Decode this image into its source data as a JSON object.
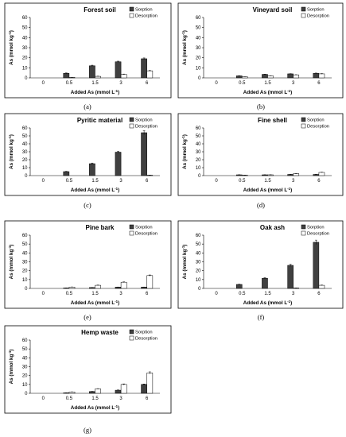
{
  "colors": {
    "sorption": "#404040",
    "desorption": "#ffffff",
    "axis": "#000000"
  },
  "chart_data": [
    {
      "type": "bar",
      "caption": "(a)",
      "title": "Forest soil",
      "xlabel": "Added As (mmol L",
      "xlabel_sup": "-1",
      "xlabel_end": ")",
      "ylabel": "As (mmol kg",
      "ylabel_sup": "-1",
      "ylabel_end": ")",
      "categories": [
        "0",
        "0.5",
        "1.5",
        "3",
        "6"
      ],
      "yticks": [
        "0",
        "10",
        "20",
        "30",
        "40",
        "50",
        "60"
      ],
      "ylim": [
        0,
        60
      ],
      "legend": "top-right",
      "series": [
        {
          "name": "Sorption",
          "values": [
            0,
            4.5,
            12,
            16,
            19
          ],
          "errors": [
            0,
            0.4,
            0.6,
            0.6,
            0.8
          ]
        },
        {
          "name": "Desorption",
          "values": [
            0,
            0.5,
            1.5,
            3.5,
            7
          ],
          "errors": [
            0,
            0.1,
            0.2,
            0.3,
            0.4
          ]
        }
      ]
    },
    {
      "type": "bar",
      "caption": "(b)",
      "title": "Vineyard soil",
      "xlabel": "Added As (mmol L",
      "xlabel_sup": "-1",
      "xlabel_end": ")",
      "ylabel": "As (mmol kg",
      "ylabel_sup": "-1",
      "ylabel_end": ")",
      "categories": [
        "0",
        "0.5",
        "1.5",
        "3",
        "6"
      ],
      "yticks": [
        "0",
        "10",
        "20",
        "30",
        "40",
        "50",
        "60"
      ],
      "ylim": [
        0,
        60
      ],
      "legend": "top-right",
      "series": [
        {
          "name": "Sorption",
          "values": [
            0,
            2,
            3.5,
            4,
            4.5
          ],
          "errors": [
            0,
            0.2,
            0.2,
            0.2,
            0.3
          ]
        },
        {
          "name": "Desorption",
          "values": [
            0,
            1,
            2,
            3,
            4
          ],
          "errors": [
            0,
            0.1,
            0.2,
            0.2,
            0.3
          ]
        }
      ]
    },
    {
      "type": "bar",
      "caption": "(c)",
      "title": "Pyritic material",
      "xlabel": "Added As (mmol L",
      "xlabel_sup": "-1",
      "xlabel_end": ")",
      "ylabel": "As (mmol kg",
      "ylabel_sup": "-1",
      "ylabel_end": ")",
      "categories": [
        "0",
        "0.5",
        "1.5",
        "3",
        "6"
      ],
      "yticks": [
        "0",
        "10",
        "20",
        "30",
        "40",
        "50",
        "60"
      ],
      "ylim": [
        0,
        60
      ],
      "legend": "top-right",
      "series": [
        {
          "name": "Sorption",
          "values": [
            0,
            5,
            15,
            29.5,
            54
          ],
          "errors": [
            0,
            0.4,
            0.8,
            1.2,
            2.5
          ]
        },
        {
          "name": "Desorption",
          "values": [
            0,
            0,
            0,
            0,
            0.5
          ],
          "errors": [
            0,
            0,
            0,
            0,
            0.1
          ]
        }
      ]
    },
    {
      "type": "bar",
      "caption": "(d)",
      "title": "Fine shell",
      "xlabel": "Added As (mmol L",
      "xlabel_sup": "-1",
      "xlabel_end": ")",
      "ylabel": "As (mmol kg",
      "ylabel_sup": "-1",
      "ylabel_end": ")",
      "categories": [
        "0",
        "0.5",
        "1.5",
        "3",
        "6"
      ],
      "yticks": [
        "0",
        "10",
        "20",
        "30",
        "40",
        "50",
        "60"
      ],
      "ylim": [
        0,
        60
      ],
      "legend": "top-right",
      "series": [
        {
          "name": "Sorption",
          "values": [
            0,
            1,
            1,
            1.5,
            1.5
          ],
          "errors": [
            0,
            0.1,
            0.1,
            0.1,
            0.1
          ]
        },
        {
          "name": "Desorption",
          "values": [
            0,
            0.5,
            1,
            2.5,
            4
          ],
          "errors": [
            0,
            0.1,
            0.1,
            0.2,
            0.3
          ]
        }
      ]
    },
    {
      "type": "bar",
      "caption": "(e)",
      "title": "Pine bark",
      "xlabel": "Added As (mmol L",
      "xlabel_sup": "-1",
      "xlabel_end": ")",
      "ylabel": "As (mmol kg",
      "ylabel_sup": "-1",
      "ylabel_end": ")",
      "categories": [
        "0",
        "0.5",
        "1.5",
        "3",
        "6"
      ],
      "yticks": [
        "0",
        "10",
        "20",
        "30",
        "40",
        "50",
        "60"
      ],
      "ylim": [
        0,
        60
      ],
      "legend": "top-right",
      "series": [
        {
          "name": "Sorption",
          "values": [
            0,
            0.5,
            1,
            1.5,
            1.5
          ],
          "errors": [
            0,
            0.1,
            0.1,
            0.1,
            0.1
          ]
        },
        {
          "name": "Desorption",
          "values": [
            0,
            1.5,
            3.5,
            7,
            14.5
          ],
          "errors": [
            0,
            0.2,
            0.3,
            0.4,
            0.7
          ]
        }
      ]
    },
    {
      "type": "bar",
      "caption": "(f)",
      "title": "Oak ash",
      "xlabel": "Added As (mmol L",
      "xlabel_sup": "-1",
      "xlabel_end": ")",
      "ylabel": "As (mmol kg",
      "ylabel_sup": "-1",
      "ylabel_end": ")",
      "categories": [
        "0",
        "0.5",
        "1.5",
        "3",
        "6"
      ],
      "yticks": [
        "0",
        "10",
        "20",
        "30",
        "40",
        "50",
        "60"
      ],
      "ylim": [
        0,
        60
      ],
      "legend": "top-right",
      "series": [
        {
          "name": "Sorption",
          "values": [
            0,
            4.5,
            11.5,
            26,
            52
          ],
          "errors": [
            0,
            0.3,
            0.6,
            1.2,
            2.5
          ]
        },
        {
          "name": "Desorption",
          "values": [
            0,
            0,
            0,
            0.5,
            3.5
          ],
          "errors": [
            0,
            0,
            0,
            0.1,
            0.3
          ]
        }
      ]
    },
    {
      "type": "bar",
      "caption": "(g)",
      "title": "Hemp waste",
      "xlabel": "Added As (mmol L",
      "xlabel_sup": "-1",
      "xlabel_end": ")",
      "ylabel": "As (mmol kg",
      "ylabel_sup": "-1",
      "ylabel_end": ")",
      "categories": [
        "0",
        "0.5",
        "1.5",
        "3",
        "6"
      ],
      "yticks": [
        "0",
        "10",
        "20",
        "30",
        "40",
        "50",
        "60"
      ],
      "ylim": [
        0,
        60
      ],
      "legend": "top-right",
      "series": [
        {
          "name": "Sorption",
          "values": [
            0,
            0.5,
            2,
            3.5,
            10
          ],
          "errors": [
            0,
            0.1,
            0.2,
            0.3,
            0.5
          ]
        },
        {
          "name": "Desorption",
          "values": [
            0,
            1.5,
            5,
            10,
            23
          ],
          "errors": [
            0,
            0.2,
            0.3,
            0.6,
            1.2
          ]
        }
      ]
    }
  ]
}
